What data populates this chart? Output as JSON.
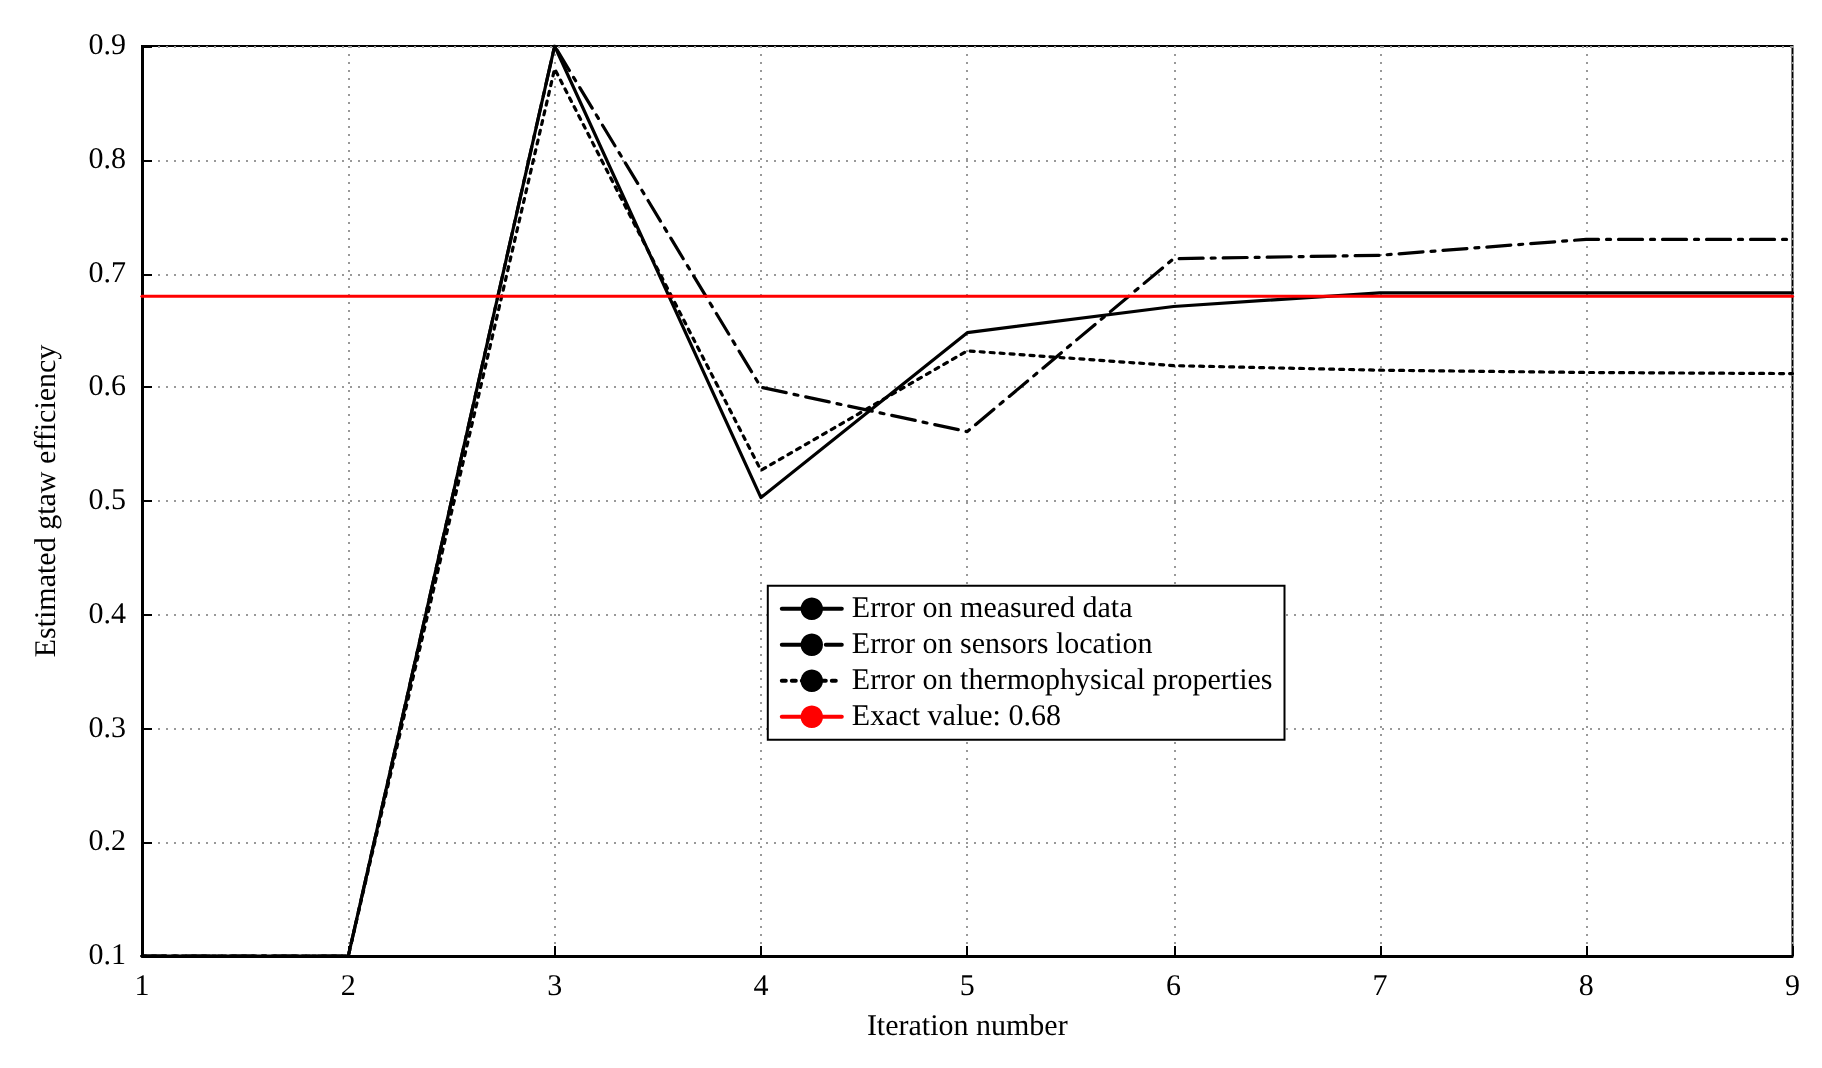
{
  "chart_data": {
    "type": "line",
    "xlabel": "Iteration number",
    "ylabel": "Estimated gtaw efficiency",
    "x": [
      1,
      2,
      3,
      4,
      5,
      6,
      7,
      8,
      9
    ],
    "series": [
      {
        "name": "Error on measured data",
        "color": "#000000",
        "line_style": "solid",
        "values": [
          0.1,
          0.1,
          0.9,
          0.503,
          0.648,
          0.671,
          0.683,
          0.683,
          0.683
        ]
      },
      {
        "name": "Error on sensors location",
        "color": "#000000",
        "line_style": "dashed",
        "values": [
          0.1,
          0.1,
          0.9,
          0.6,
          0.561,
          0.713,
          0.716,
          0.73,
          0.73
        ]
      },
      {
        "name": "Error on thermophysical properties",
        "color": "#000000",
        "line_style": "dotted",
        "values": [
          0.1,
          0.1,
          0.88,
          0.527,
          0.632,
          0.619,
          0.615,
          0.613,
          0.612
        ]
      },
      {
        "name": "Exact value: 0.68",
        "color": "#ff0000",
        "line_style": "solid",
        "values": [
          0.68,
          0.68,
          0.68,
          0.68,
          0.68,
          0.68,
          0.68,
          0.68,
          0.68
        ]
      }
    ],
    "xlim": [
      1,
      9
    ],
    "xticks": [
      1,
      2,
      3,
      4,
      5,
      6,
      7,
      8,
      9
    ],
    "ylim": [
      0.1,
      0.9
    ],
    "yticks": [
      0.1,
      0.2,
      0.3,
      0.4,
      0.5,
      0.6,
      0.7,
      0.8,
      0.9
    ],
    "grid": true,
    "legend": "center",
    "marker": "none"
  }
}
